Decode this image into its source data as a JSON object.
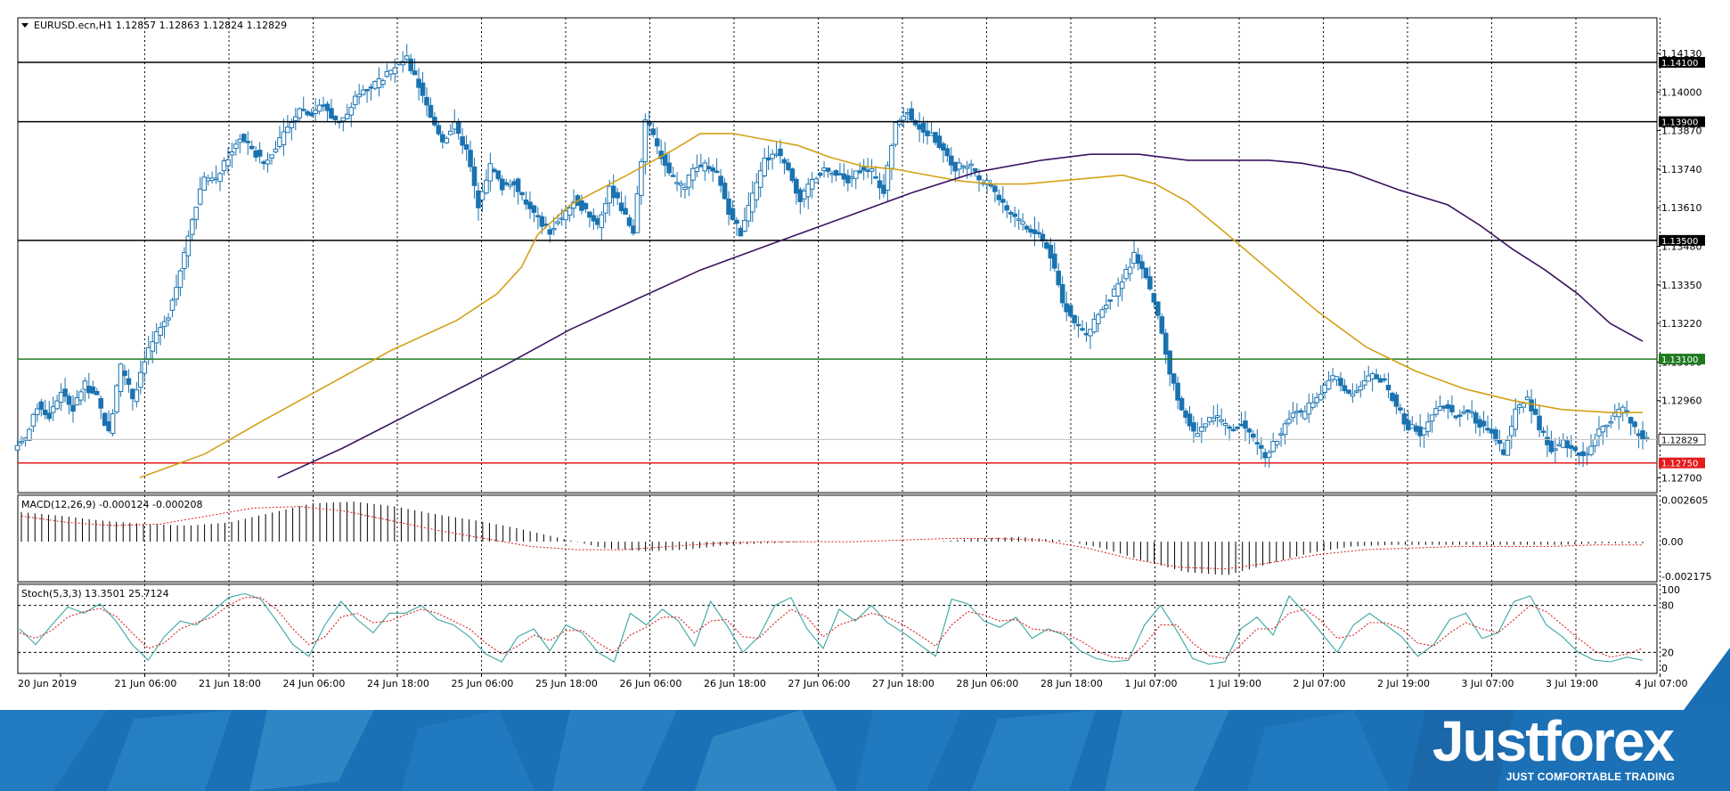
{
  "header": {
    "symbol_line": "EURUSD.ecn,H1  1.12857 1.12863 1.12824 1.12829"
  },
  "chart_data": [
    {
      "type": "candlestick",
      "symbol": "EURUSD.ecn",
      "timeframe": "H1",
      "ohlc_last": {
        "open": 1.12857,
        "high": 1.12863,
        "low": 1.12824,
        "close": 1.12829
      },
      "last_price_label": "1.12829",
      "ylim": [
        1.1265,
        1.1425
      ],
      "y_ticks": [
        "1.14130",
        "1.14000",
        "1.13870",
        "1.13740",
        "1.13610",
        "1.13480",
        "1.13350",
        "1.13220",
        "1.13090",
        "1.12960",
        "1.12700"
      ],
      "level_lines": [
        {
          "value": 1.141,
          "label": "1.14100",
          "color": "#000000"
        },
        {
          "value": 1.139,
          "label": "1.13900",
          "color": "#000000"
        },
        {
          "value": 1.135,
          "label": "1.13500",
          "color": "#000000"
        },
        {
          "value": 1.131,
          "label": "1.13100",
          "color": "#1f7a1f"
        },
        {
          "value": 1.1275,
          "label": "1.12750",
          "color": "#e31b1b"
        }
      ],
      "x_labels": [
        "20 Jun 2019",
        "21 Jun 06:00",
        "21 Jun 18:00",
        "24 Jun 06:00",
        "24 Jun 18:00",
        "25 Jun 06:00",
        "25 Jun 18:00",
        "26 Jun 06:00",
        "26 Jun 18:00",
        "27 Jun 06:00",
        "27 Jun 18:00",
        "28 Jun 06:00",
        "28 Jun 18:00",
        "1 Jul 07:00",
        "1 Jul 19:00",
        "2 Jul 07:00",
        "2 Jul 19:00",
        "3 Jul 07:00",
        "3 Jul 19:00",
        "4 Jul 07:00"
      ],
      "close_path": [
        1.1283,
        1.1294,
        1.1291,
        1.1299,
        1.1293,
        1.1302,
        1.1297,
        1.1285,
        1.1308,
        1.1297,
        1.131,
        1.1318,
        1.1325,
        1.134,
        1.1358,
        1.1372,
        1.137,
        1.1378,
        1.1385,
        1.138,
        1.1376,
        1.1382,
        1.1388,
        1.1395,
        1.1393,
        1.1396,
        1.139,
        1.1392,
        1.14,
        1.1402,
        1.1405,
        1.1408,
        1.1411,
        1.1402,
        1.1391,
        1.1384,
        1.1389,
        1.138,
        1.1362,
        1.1375,
        1.1368,
        1.137,
        1.1362,
        1.1357,
        1.1353,
        1.1358,
        1.1363,
        1.136,
        1.1356,
        1.1367,
        1.1361,
        1.1352,
        1.139,
        1.1382,
        1.1372,
        1.1368,
        1.1373,
        1.1375,
        1.1372,
        1.136,
        1.1352,
        1.1365,
        1.1377,
        1.138,
        1.1375,
        1.1363,
        1.137,
        1.1374,
        1.1372,
        1.137,
        1.1374,
        1.1373,
        1.1367,
        1.139,
        1.1394,
        1.1388,
        1.1385,
        1.1381,
        1.1374,
        1.1376,
        1.137,
        1.1369,
        1.1362,
        1.1358,
        1.1354,
        1.1352,
        1.1345,
        1.133,
        1.1322,
        1.1318,
        1.1325,
        1.1331,
        1.1336,
        1.1345,
        1.1338,
        1.1324,
        1.1305,
        1.1293,
        1.1285,
        1.1288,
        1.129,
        1.1286,
        1.1288,
        1.1283,
        1.1278,
        1.1283,
        1.129,
        1.1292,
        1.1296,
        1.13,
        1.1305,
        1.1298,
        1.13,
        1.1305,
        1.1302,
        1.1295,
        1.1287,
        1.1285,
        1.1292,
        1.1294,
        1.129,
        1.1293,
        1.1288,
        1.1285,
        1.1278,
        1.1292,
        1.1298,
        1.1287,
        1.128,
        1.1282,
        1.1279,
        1.1278,
        1.1286,
        1.129,
        1.1293,
        1.1286,
        1.1283
      ],
      "indicators": [
        {
          "name": "MA short",
          "color": "#d4a017",
          "path": [
            1.127,
            1.1278,
            1.1289,
            1.1301,
            1.1313,
            1.1323,
            1.1332,
            1.1341,
            1.1352,
            1.1362,
            1.1372,
            1.1381,
            1.1386,
            1.1386,
            1.1384,
            1.1382,
            1.1378,
            1.1375,
            1.1374,
            1.1372,
            1.137,
            1.1369,
            1.1369,
            1.137,
            1.1371,
            1.1372,
            1.1369,
            1.1363,
            1.1354,
            1.134,
            1.1326,
            1.1314,
            1.1306,
            1.13,
            1.1296,
            1.1293,
            1.1292,
            1.1292
          ],
          "x_frac": [
            0.075,
            0.115,
            0.15,
            0.19,
            0.23,
            0.27,
            0.295,
            0.31,
            0.32,
            0.34,
            0.375,
            0.405,
            0.42,
            0.44,
            0.46,
            0.48,
            0.5,
            0.52,
            0.54,
            0.56,
            0.58,
            0.6,
            0.62,
            0.64,
            0.66,
            0.68,
            0.7,
            0.72,
            0.74,
            0.77,
            0.8,
            0.83,
            0.86,
            0.89,
            0.92,
            0.95,
            0.98,
            1.0
          ]
        },
        {
          "name": "MA long",
          "color": "#3b1460",
          "path": [
            1.127,
            1.128,
            1.1294,
            1.1308,
            1.132,
            1.133,
            1.134,
            1.135,
            1.1358,
            1.1366,
            1.1373,
            1.1377,
            1.1379,
            1.1379,
            1.1377,
            1.1377,
            1.1377,
            1.1376,
            1.1373,
            1.1367,
            1.1362,
            1.1355,
            1.1347,
            1.134,
            1.1332,
            1.1322,
            1.1316
          ],
          "x_frac": [
            0.16,
            0.2,
            0.25,
            0.3,
            0.34,
            0.38,
            0.42,
            0.47,
            0.51,
            0.55,
            0.59,
            0.63,
            0.66,
            0.69,
            0.72,
            0.75,
            0.77,
            0.79,
            0.82,
            0.85,
            0.88,
            0.9,
            0.92,
            0.94,
            0.96,
            0.98,
            1.0
          ]
        }
      ]
    },
    {
      "type": "bar",
      "title": "MACD(12,26,9) -0.000124 -0.000208",
      "y_ticks": [
        "0.002605",
        "0.00",
        "-0.002175"
      ],
      "ylim": [
        -0.0025,
        0.0029
      ],
      "histogram_path": [
        0.00185,
        0.0016,
        0.0013,
        0.0011,
        0.001,
        0.0012,
        0.0018,
        0.0024,
        0.0025,
        0.0022,
        0.0017,
        0.0013,
        0.0008,
        0.0002,
        -0.0004,
        -0.0006,
        -0.0005,
        -0.0002,
        -0.0001,
        0.0,
        0.0,
        0.0,
        0.0,
        0.0002,
        0.0003,
        0.0001,
        -0.0004,
        -0.0012,
        -0.0019,
        -0.0021,
        -0.0014,
        -0.0007,
        -0.0003,
        -0.0002,
        -0.0002,
        -0.0002,
        -0.0002,
        -0.0002,
        -0.0001,
        -0.0001
      ],
      "signal_path": [
        0.0016,
        0.0012,
        0.001,
        0.0011,
        0.0016,
        0.0021,
        0.0022,
        0.0019,
        0.0013,
        0.0007,
        0.0002,
        -0.0003,
        -0.0005,
        -0.0005,
        -0.0003,
        -0.0001,
        0.0,
        0.0,
        0.0,
        0.0001,
        0.0002,
        0.0002,
        0.0001,
        -0.0004,
        -0.0011,
        -0.0016,
        -0.0017,
        -0.0013,
        -0.0008,
        -0.0005,
        -0.0004,
        -0.0003,
        -0.0003,
        -0.0003,
        -0.0002,
        -0.0002
      ]
    },
    {
      "type": "line",
      "title": "Stoch(5,3,3) 13.3501 25.7124",
      "y_ticks": [
        "100",
        "80",
        "20",
        "0"
      ],
      "ylim": [
        0,
        100
      ],
      "levels": [
        80,
        20
      ],
      "main_color": "#3aa7a3",
      "signal_color": "#d62020",
      "main_path": [
        50,
        30,
        55,
        78,
        70,
        82,
        60,
        30,
        10,
        40,
        60,
        55,
        72,
        90,
        95,
        88,
        60,
        30,
        15,
        55,
        85,
        62,
        45,
        70,
        70,
        80,
        62,
        55,
        40,
        18,
        8,
        40,
        50,
        22,
        55,
        45,
        20,
        8,
        70,
        55,
        75,
        60,
        28,
        85,
        55,
        20,
        40,
        80,
        90,
        50,
        25,
        75,
        60,
        80,
        58,
        45,
        30,
        15,
        88,
        82,
        60,
        52,
        65,
        38,
        50,
        42,
        22,
        12,
        8,
        10,
        55,
        80,
        48,
        12,
        5,
        8,
        50,
        65,
        42,
        92,
        70,
        45,
        20,
        55,
        70,
        55,
        40,
        15,
        30,
        62,
        70,
        38,
        45,
        85,
        92,
        55,
        40,
        20,
        10,
        8,
        14,
        10
      ],
      "signal_path": [
        45,
        38,
        48,
        65,
        72,
        76,
        66,
        45,
        25,
        32,
        50,
        58,
        65,
        80,
        90,
        90,
        75,
        50,
        30,
        40,
        65,
        70,
        58,
        60,
        68,
        75,
        70,
        60,
        50,
        32,
        18,
        28,
        42,
        35,
        48,
        48,
        32,
        20,
        42,
        52,
        65,
        65,
        45,
        60,
        62,
        40,
        38,
        58,
        75,
        65,
        40,
        55,
        62,
        70,
        65,
        55,
        42,
        28,
        55,
        72,
        68,
        60,
        62,
        50,
        48,
        45,
        35,
        22,
        14,
        12,
        30,
        55,
        55,
        32,
        16,
        12,
        30,
        50,
        50,
        70,
        75,
        60,
        38,
        42,
        58,
        58,
        50,
        32,
        28,
        45,
        58,
        50,
        45,
        62,
        80,
        72,
        55,
        38,
        22,
        14,
        18,
        25
      ]
    }
  ],
  "branding": {
    "logo": "Justforex",
    "tagline": "JUST COMFORTABLE TRADING"
  }
}
